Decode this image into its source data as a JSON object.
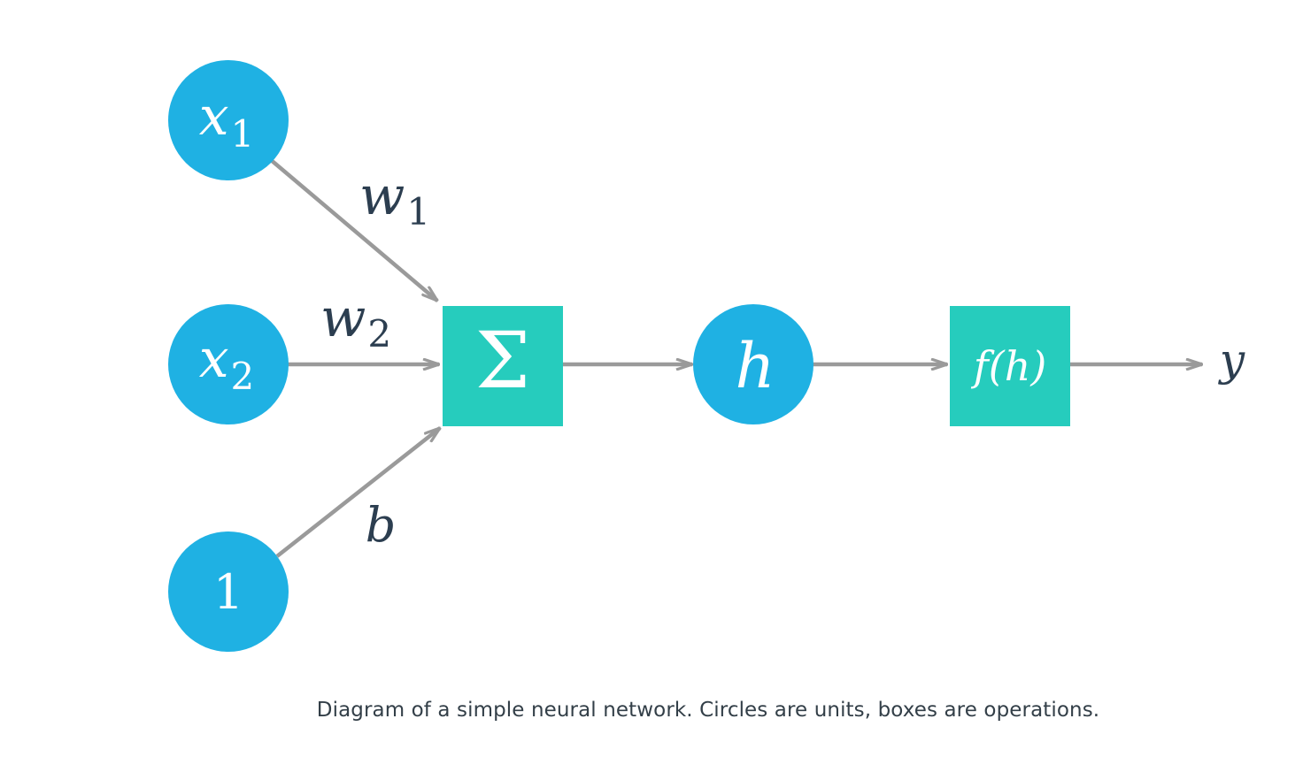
{
  "colors": {
    "unit": "#1fb1e3",
    "operation": "#26ccbd",
    "arrow": "#9a9a9a",
    "node_text": "#ffffff",
    "label_text": "#2c3e50"
  },
  "nodes": {
    "x1": {
      "base": "x",
      "sub": "1"
    },
    "x2": {
      "base": "x",
      "sub": "2"
    },
    "bias": {
      "text": "1"
    },
    "sum": {
      "symbol": "Σ"
    },
    "h": {
      "text": "h"
    },
    "f": {
      "text": "f(h)"
    }
  },
  "edge_labels": {
    "w1": {
      "base": "w",
      "sub": "1"
    },
    "w2": {
      "base": "w",
      "sub": "2"
    },
    "b": "b"
  },
  "output_label": "y",
  "caption": "Diagram of a simple neural network. Circles are units, boxes are operations."
}
